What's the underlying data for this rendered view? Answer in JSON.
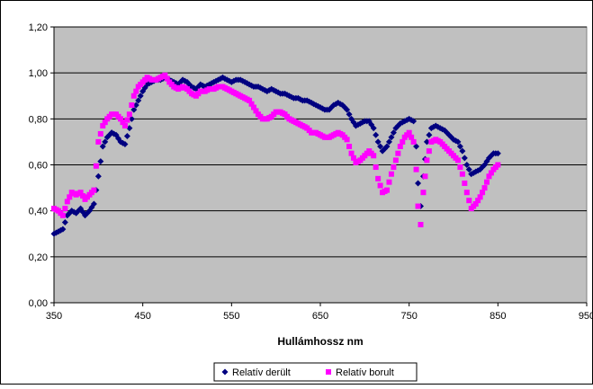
{
  "chart_data": {
    "type": "scatter",
    "title": "",
    "xlabel": "Hullámhossz nm",
    "ylabel": "",
    "xlim": [
      350,
      950
    ],
    "ylim": [
      0,
      1.2
    ],
    "x_ticks": [
      350,
      450,
      550,
      650,
      750,
      850,
      950
    ],
    "x_tick_labels": [
      "350",
      "450",
      "550",
      "650",
      "750",
      "850",
      "950"
    ],
    "y_ticks": [
      0,
      0.2,
      0.4,
      0.6,
      0.8,
      1.0,
      1.2
    ],
    "y_tick_labels": [
      "0,00",
      "0,20",
      "0,40",
      "0,60",
      "0,80",
      "1,00",
      "1,20"
    ],
    "grid": "horizontal",
    "plot_background": "#c0c0c0",
    "legend_position": "bottom",
    "series": [
      {
        "name": "Relatív derült",
        "color": "#000080",
        "marker": "diamond",
        "points": [
          [
            350,
            0.3
          ],
          [
            355,
            0.31
          ],
          [
            360,
            0.32
          ],
          [
            365,
            0.38
          ],
          [
            370,
            0.4
          ],
          [
            375,
            0.39
          ],
          [
            380,
            0.41
          ],
          [
            385,
            0.38
          ],
          [
            390,
            0.4
          ],
          [
            395,
            0.43
          ],
          [
            400,
            0.55
          ],
          [
            405,
            0.68
          ],
          [
            410,
            0.72
          ],
          [
            415,
            0.74
          ],
          [
            420,
            0.73
          ],
          [
            425,
            0.7
          ],
          [
            430,
            0.69
          ],
          [
            435,
            0.76
          ],
          [
            440,
            0.84
          ],
          [
            445,
            0.88
          ],
          [
            450,
            0.92
          ],
          [
            455,
            0.95
          ],
          [
            460,
            0.96
          ],
          [
            465,
            0.97
          ],
          [
            470,
            0.97
          ],
          [
            475,
            0.98
          ],
          [
            480,
            0.97
          ],
          [
            485,
            0.96
          ],
          [
            490,
            0.95
          ],
          [
            495,
            0.97
          ],
          [
            500,
            0.96
          ],
          [
            505,
            0.94
          ],
          [
            510,
            0.93
          ],
          [
            515,
            0.95
          ],
          [
            520,
            0.94
          ],
          [
            525,
            0.95
          ],
          [
            530,
            0.96
          ],
          [
            535,
            0.97
          ],
          [
            540,
            0.98
          ],
          [
            545,
            0.97
          ],
          [
            550,
            0.96
          ],
          [
            555,
            0.97
          ],
          [
            560,
            0.97
          ],
          [
            565,
            0.96
          ],
          [
            570,
            0.95
          ],
          [
            575,
            0.94
          ],
          [
            580,
            0.94
          ],
          [
            585,
            0.93
          ],
          [
            590,
            0.92
          ],
          [
            595,
            0.93
          ],
          [
            600,
            0.92
          ],
          [
            605,
            0.91
          ],
          [
            610,
            0.91
          ],
          [
            615,
            0.9
          ],
          [
            620,
            0.89
          ],
          [
            625,
            0.89
          ],
          [
            630,
            0.88
          ],
          [
            635,
            0.88
          ],
          [
            640,
            0.87
          ],
          [
            645,
            0.86
          ],
          [
            650,
            0.85
          ],
          [
            655,
            0.84
          ],
          [
            660,
            0.84
          ],
          [
            665,
            0.86
          ],
          [
            670,
            0.87
          ],
          [
            675,
            0.86
          ],
          [
            680,
            0.84
          ],
          [
            685,
            0.8
          ],
          [
            690,
            0.77
          ],
          [
            695,
            0.78
          ],
          [
            700,
            0.79
          ],
          [
            705,
            0.79
          ],
          [
            710,
            0.76
          ],
          [
            715,
            0.7
          ],
          [
            720,
            0.66
          ],
          [
            725,
            0.68
          ],
          [
            730,
            0.72
          ],
          [
            735,
            0.76
          ],
          [
            740,
            0.78
          ],
          [
            745,
            0.79
          ],
          [
            750,
            0.8
          ],
          [
            755,
            0.79
          ],
          [
            758,
            0.68
          ],
          [
            760,
            0.52
          ],
          [
            763,
            0.42
          ],
          [
            766,
            0.55
          ],
          [
            770,
            0.7
          ],
          [
            775,
            0.76
          ],
          [
            780,
            0.77
          ],
          [
            785,
            0.76
          ],
          [
            790,
            0.75
          ],
          [
            795,
            0.73
          ],
          [
            800,
            0.71
          ],
          [
            805,
            0.7
          ],
          [
            810,
            0.66
          ],
          [
            815,
            0.6
          ],
          [
            820,
            0.56
          ],
          [
            825,
            0.57
          ],
          [
            830,
            0.58
          ],
          [
            835,
            0.6
          ],
          [
            840,
            0.63
          ],
          [
            845,
            0.65
          ],
          [
            850,
            0.65
          ]
        ]
      },
      {
        "name": "Relatív borult",
        "color": "#ff00ff",
        "marker": "square",
        "points": [
          [
            350,
            0.41
          ],
          [
            355,
            0.4
          ],
          [
            360,
            0.38
          ],
          [
            365,
            0.44
          ],
          [
            370,
            0.48
          ],
          [
            375,
            0.47
          ],
          [
            380,
            0.48
          ],
          [
            385,
            0.45
          ],
          [
            390,
            0.47
          ],
          [
            395,
            0.49
          ],
          [
            400,
            0.7
          ],
          [
            405,
            0.77
          ],
          [
            410,
            0.8
          ],
          [
            415,
            0.82
          ],
          [
            420,
            0.82
          ],
          [
            425,
            0.8
          ],
          [
            430,
            0.77
          ],
          [
            435,
            0.82
          ],
          [
            440,
            0.9
          ],
          [
            445,
            0.94
          ],
          [
            450,
            0.96
          ],
          [
            455,
            0.98
          ],
          [
            460,
            0.97
          ],
          [
            465,
            0.97
          ],
          [
            470,
            0.98
          ],
          [
            475,
            0.99
          ],
          [
            480,
            0.96
          ],
          [
            485,
            0.94
          ],
          [
            490,
            0.93
          ],
          [
            495,
            0.94
          ],
          [
            500,
            0.93
          ],
          [
            505,
            0.91
          ],
          [
            510,
            0.9
          ],
          [
            515,
            0.92
          ],
          [
            520,
            0.92
          ],
          [
            525,
            0.93
          ],
          [
            530,
            0.93
          ],
          [
            535,
            0.94
          ],
          [
            540,
            0.94
          ],
          [
            545,
            0.93
          ],
          [
            550,
            0.92
          ],
          [
            555,
            0.91
          ],
          [
            560,
            0.9
          ],
          [
            565,
            0.89
          ],
          [
            570,
            0.88
          ],
          [
            575,
            0.85
          ],
          [
            580,
            0.82
          ],
          [
            585,
            0.8
          ],
          [
            590,
            0.8
          ],
          [
            595,
            0.81
          ],
          [
            600,
            0.83
          ],
          [
            605,
            0.83
          ],
          [
            610,
            0.82
          ],
          [
            615,
            0.8
          ],
          [
            620,
            0.79
          ],
          [
            625,
            0.78
          ],
          [
            630,
            0.77
          ],
          [
            635,
            0.76
          ],
          [
            640,
            0.74
          ],
          [
            645,
            0.74
          ],
          [
            650,
            0.73
          ],
          [
            655,
            0.72
          ],
          [
            660,
            0.72
          ],
          [
            665,
            0.73
          ],
          [
            670,
            0.74
          ],
          [
            675,
            0.73
          ],
          [
            680,
            0.71
          ],
          [
            685,
            0.65
          ],
          [
            690,
            0.61
          ],
          [
            695,
            0.62
          ],
          [
            700,
            0.64
          ],
          [
            705,
            0.66
          ],
          [
            710,
            0.64
          ],
          [
            715,
            0.54
          ],
          [
            720,
            0.48
          ],
          [
            725,
            0.49
          ],
          [
            730,
            0.56
          ],
          [
            735,
            0.62
          ],
          [
            740,
            0.68
          ],
          [
            745,
            0.72
          ],
          [
            750,
            0.74
          ],
          [
            755,
            0.7
          ],
          [
            758,
            0.58
          ],
          [
            760,
            0.42
          ],
          [
            763,
            0.34
          ],
          [
            766,
            0.48
          ],
          [
            770,
            0.62
          ],
          [
            775,
            0.7
          ],
          [
            780,
            0.71
          ],
          [
            785,
            0.7
          ],
          [
            790,
            0.68
          ],
          [
            795,
            0.66
          ],
          [
            800,
            0.64
          ],
          [
            805,
            0.62
          ],
          [
            810,
            0.56
          ],
          [
            815,
            0.48
          ],
          [
            820,
            0.41
          ],
          [
            825,
            0.43
          ],
          [
            830,
            0.46
          ],
          [
            835,
            0.5
          ],
          [
            840,
            0.55
          ],
          [
            845,
            0.58
          ],
          [
            850,
            0.6
          ]
        ]
      }
    ]
  }
}
